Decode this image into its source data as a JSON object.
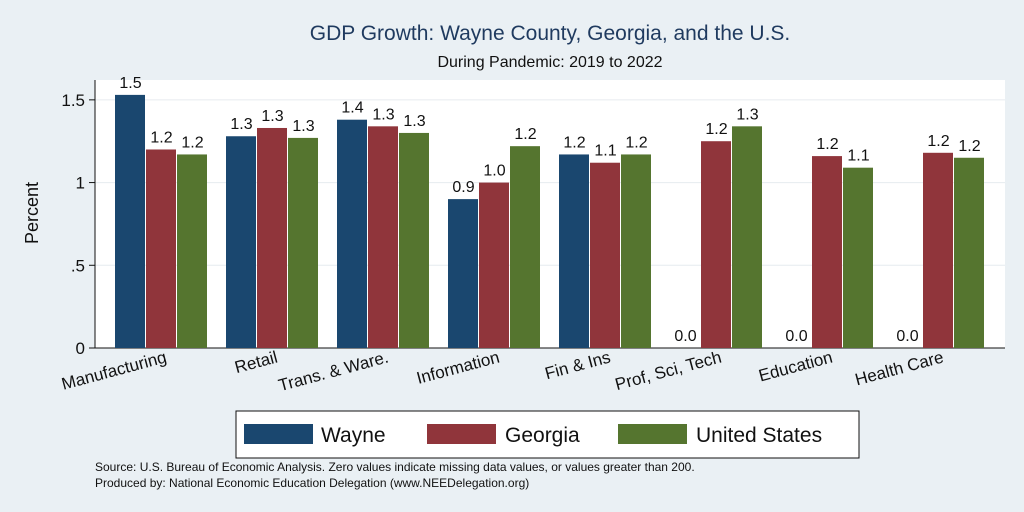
{
  "chart_data": {
    "type": "bar",
    "title": "GDP Growth: Wayne County, Georgia, and the U.S.",
    "subtitle": "During Pandemic: 2019 to 2022",
    "ylabel": "Percent",
    "xlabel": "",
    "ylim": [
      0,
      1.62
    ],
    "yticks": [
      0,
      0.5,
      1,
      1.5
    ],
    "ytick_labels": [
      "0",
      ".5",
      "1",
      "1.5"
    ],
    "categories": [
      "Manufacturing",
      "Retail",
      "Trans. & Ware.",
      "Information",
      "Fin & Ins",
      "Prof, Sci, Tech",
      "Education",
      "Health Care"
    ],
    "series": [
      {
        "name": "Wayne",
        "color": "#1a476f",
        "values": [
          1.53,
          1.28,
          1.38,
          0.9,
          1.17,
          0,
          0,
          0
        ],
        "labels": [
          "1.5",
          "1.3",
          "1.4",
          "0.9",
          "1.2",
          "0.0",
          "0.0",
          "0.0"
        ]
      },
      {
        "name": "Georgia",
        "color": "#90353b",
        "values": [
          1.2,
          1.33,
          1.34,
          1.0,
          1.12,
          1.25,
          1.16,
          1.18
        ],
        "labels": [
          "1.2",
          "1.3",
          "1.3",
          "1.0",
          "1.1",
          "1.2",
          "1.2",
          "1.2"
        ]
      },
      {
        "name": "United States",
        "color": "#55752f",
        "values": [
          1.17,
          1.27,
          1.3,
          1.22,
          1.17,
          1.34,
          1.09,
          1.15
        ],
        "labels": [
          "1.2",
          "1.3",
          "1.3",
          "1.2",
          "1.2",
          "1.3",
          "1.1",
          "1.2"
        ]
      }
    ],
    "grid": true,
    "legend_position": "bottom",
    "notes": [
      "Source: U.S. Bureau of Economic Analysis. Zero values indicate missing data values, or values greater than 200.",
      "Produced by: National Economic Education Delegation (www.NEEDelegation.org)"
    ]
  }
}
